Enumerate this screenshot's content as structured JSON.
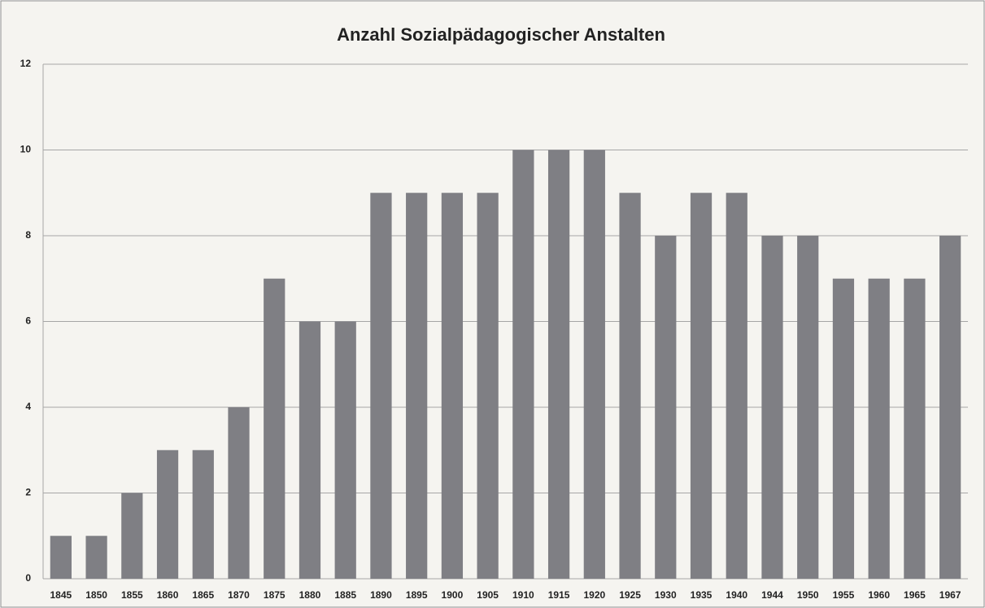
{
  "chart_data": {
    "type": "bar",
    "title": "Anzahl Sozialpädagogischer Anstalten",
    "categories": [
      "1845",
      "1850",
      "1855",
      "1860",
      "1865",
      "1870",
      "1875",
      "1880",
      "1885",
      "1890",
      "1895",
      "1900",
      "1905",
      "1910",
      "1915",
      "1920",
      "1925",
      "1930",
      "1935",
      "1940",
      "1944",
      "1950",
      "1955",
      "1960",
      "1965",
      "1967"
    ],
    "values": [
      1,
      1,
      2,
      3,
      3,
      4,
      7,
      6,
      6,
      9,
      9,
      9,
      9,
      10,
      10,
      10,
      9,
      8,
      9,
      9,
      8,
      8,
      7,
      7,
      7,
      8
    ],
    "color": "#7f7f84",
    "ylim": [
      0,
      12
    ],
    "yticks": [
      0,
      2,
      4,
      6,
      8,
      10,
      12
    ],
    "grid": true
  }
}
